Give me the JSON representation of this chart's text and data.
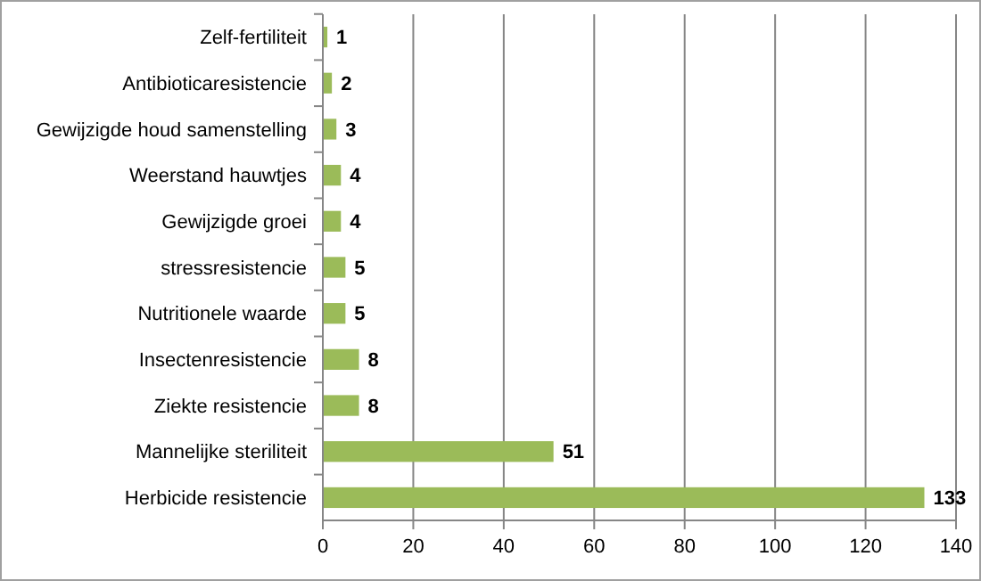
{
  "chart_data": {
    "type": "bar",
    "orientation": "horizontal",
    "categories": [
      "Zelf-fertiliteit",
      "Antibioticaresistencie",
      "Gewijzigde houd samenstelling",
      "Weerstand hauwtjes",
      "Gewijzigde groei",
      "stressresistencie",
      "Nutritionele waarde",
      "Insectenresistencie",
      "Ziekte resistencie",
      "Mannelijke steriliteit",
      "Herbicide resistencie"
    ],
    "values": [
      1,
      2,
      3,
      4,
      4,
      5,
      5,
      8,
      8,
      51,
      133
    ],
    "color": "#9bbb59",
    "xlim": [
      0,
      140
    ],
    "xticks": [
      0,
      20,
      40,
      60,
      80,
      100,
      120,
      140
    ],
    "grid": "x",
    "data_labels": true
  }
}
